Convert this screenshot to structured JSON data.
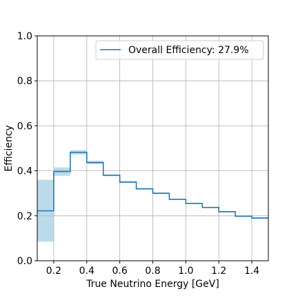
{
  "chart_data": {
    "type": "line",
    "subtype": "step-with-error-band",
    "xlabel": "True Neutrino Energy [GeV]",
    "ylabel": "Efficiency",
    "xlim": [
      0.1,
      1.5
    ],
    "ylim": [
      0.0,
      1.0
    ],
    "xticks": [
      0.2,
      0.4,
      0.6,
      0.8,
      1.0,
      1.2,
      1.4
    ],
    "xtick_labels": [
      "0.2",
      "0.4",
      "0.6",
      "0.8",
      "1.0",
      "1.2",
      "1.4"
    ],
    "yticks": [
      0.0,
      0.2,
      0.4,
      0.6,
      0.8,
      1.0
    ],
    "ytick_labels": [
      "0.0",
      "0.2",
      "0.4",
      "0.6",
      "0.8",
      "1.0"
    ],
    "grid": true,
    "legend_position": "top-right",
    "series": [
      {
        "name": "Overall Efficiency: 27.9%",
        "color": "#1f77b4",
        "band_color": "#9ecae1",
        "bins": [
          0.1,
          0.2,
          0.3,
          0.4,
          0.5,
          0.6,
          0.7,
          0.8,
          0.9,
          1.0,
          1.1,
          1.2,
          1.3,
          1.4,
          1.5
        ],
        "values": [
          0.222,
          0.397,
          0.482,
          0.437,
          0.38,
          0.35,
          0.32,
          0.3,
          0.273,
          0.255,
          0.237,
          0.218,
          0.198,
          0.19
        ],
        "lower": [
          0.085,
          0.378,
          0.472,
          0.43,
          0.376,
          0.346,
          0.317,
          0.297,
          0.27,
          0.252,
          0.234,
          0.215,
          0.195,
          0.187
        ],
        "upper": [
          0.36,
          0.415,
          0.492,
          0.444,
          0.384,
          0.354,
          0.323,
          0.303,
          0.276,
          0.258,
          0.24,
          0.221,
          0.201,
          0.193
        ]
      }
    ]
  }
}
